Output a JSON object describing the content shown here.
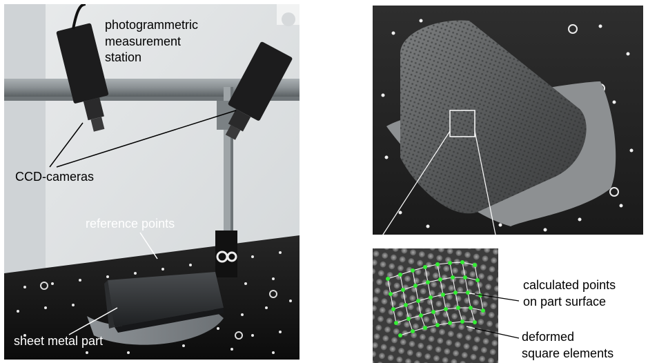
{
  "labels": {
    "station": [
      "photogrammetric",
      "measurement",
      "station"
    ],
    "cameras": "CCD-cameras",
    "reference_points": "reference points",
    "sheet_metal_part": "sheet metal part",
    "calculated_points": [
      "calculated points",
      "on part surface"
    ],
    "deformed_elements": [
      "deformed",
      "square elements"
    ]
  },
  "colors": {
    "highlight_points": "#33ee33",
    "mesh_lines": "#ffffff"
  }
}
